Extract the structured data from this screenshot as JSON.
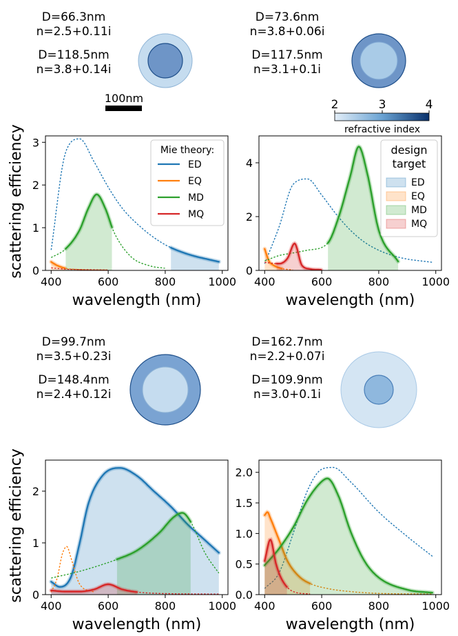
{
  "figure": {
    "scale_bar_label": "100nm",
    "colorbar": {
      "label": "refractive index",
      "ticks": [
        "2",
        "3",
        "4"
      ],
      "range": [
        2,
        4
      ]
    },
    "shell_labels": [
      {
        "outer_d": "D=66.3nm",
        "outer_n": "n=2.5+0.11i",
        "inner_d": "D=118.5nm",
        "inner_n": "n=3.8+0.14i"
      },
      {
        "outer_d": "D=73.6nm",
        "outer_n": "n=3.8+0.06i",
        "inner_d": "D=117.5nm",
        "inner_n": "n=3.1+0.1i"
      },
      {
        "outer_d": "D=99.7nm",
        "outer_n": "n=3.5+0.23i",
        "inner_d": "D=148.4nm",
        "inner_n": "n=2.4+0.12i"
      },
      {
        "outer_d": "D=162.7nm",
        "outer_n": "n=2.2+0.07i",
        "inner_d": "D=109.9nm",
        "inner_n": "n=3.0+0.1i"
      }
    ],
    "particles": [
      {
        "outer_color": "#c5dcef",
        "inner_color": "#6e95c7"
      },
      {
        "outer_color": "#6e95c7",
        "inner_color": "#a9cbe7"
      },
      {
        "outer_color": "#7aa3d2",
        "inner_color": "#c5dcef"
      },
      {
        "outer_color": "#d4e5f3",
        "inner_color": "#8fb8de"
      }
    ]
  },
  "chart_data": [
    {
      "type": "line",
      "xlabel": "wavelength (nm)",
      "ylabel": "scattering efficiency",
      "xlim": [
        380,
        1020
      ],
      "ylim": [
        0,
        3.15
      ],
      "xticks": [
        400,
        600,
        800,
        1000
      ],
      "yticks": [
        0,
        1,
        2,
        3
      ],
      "legend": {
        "title": "Mie theory:",
        "position": "top-right",
        "entries": [
          "ED",
          "EQ",
          "MD",
          "MQ"
        ]
      },
      "series": [
        {
          "name": "ED",
          "color": "#1f77b4",
          "x": [
            400,
            450,
            500,
            550,
            600,
            650,
            700,
            750,
            800,
            850,
            900,
            950,
            990
          ],
          "y": [
            0.48,
            2.75,
            3.08,
            2.55,
            1.95,
            1.45,
            1.1,
            0.82,
            0.6,
            0.45,
            0.34,
            0.26,
            0.2
          ],
          "highlight": [
            820,
            990
          ]
        },
        {
          "name": "EQ",
          "color": "#ff7f0e",
          "x": [
            400,
            420,
            450,
            500,
            550,
            600
          ],
          "y": [
            0.2,
            0.12,
            0.05,
            0.02,
            0.01,
            0.01
          ],
          "highlight": [
            400,
            450
          ]
        },
        {
          "name": "MD",
          "color": "#2ca02c",
          "x": [
            400,
            450,
            500,
            530,
            560,
            590,
            620,
            680,
            750,
            800
          ],
          "y": [
            0.3,
            0.5,
            0.95,
            1.45,
            1.78,
            1.45,
            0.9,
            0.32,
            0.1,
            0.05
          ],
          "highlight": [
            450,
            615
          ]
        },
        {
          "name": "MQ",
          "color": "#d62728",
          "x": [
            400,
            450,
            500,
            600
          ],
          "y": [
            0.06,
            0.03,
            0.02,
            0.01
          ],
          "highlight": null
        }
      ]
    },
    {
      "type": "line",
      "xlabel": "wavelength (nm)",
      "ylabel": "",
      "xlim": [
        380,
        1020
      ],
      "ylim": [
        0,
        5.0
      ],
      "xticks": [
        400,
        600,
        800,
        1000
      ],
      "yticks": [
        0,
        2,
        4
      ],
      "legend": {
        "title": "design target",
        "position": "top-right",
        "entries": [
          "ED",
          "EQ",
          "MD",
          "MQ"
        ]
      },
      "series": [
        {
          "name": "ED",
          "color": "#1f77b4",
          "x": [
            400,
            450,
            500,
            550,
            600,
            650,
            700,
            750,
            800,
            850,
            900,
            950,
            990
          ],
          "y": [
            0.25,
            1.6,
            3.2,
            3.4,
            2.8,
            2.1,
            1.5,
            1.05,
            0.75,
            0.55,
            0.42,
            0.35,
            0.3
          ],
          "highlight": null
        },
        {
          "name": "EQ",
          "color": "#ff7f0e",
          "x": [
            400,
            415,
            430,
            450,
            470,
            500
          ],
          "y": [
            0.8,
            0.35,
            0.2,
            0.1,
            0.05,
            0.02
          ],
          "highlight": [
            400,
            460
          ]
        },
        {
          "name": "MD",
          "color": "#2ca02c",
          "x": [
            400,
            450,
            500,
            550,
            620,
            660,
            700,
            730,
            760,
            800,
            870
          ],
          "y": [
            0.35,
            0.55,
            0.65,
            0.75,
            1.0,
            2.0,
            3.5,
            4.6,
            3.6,
            1.5,
            0.3
          ],
          "highlight": [
            620,
            870
          ]
        },
        {
          "name": "MQ",
          "color": "#d62728",
          "x": [
            400,
            450,
            480,
            505,
            530,
            560,
            600
          ],
          "y": [
            0.3,
            0.25,
            0.45,
            1.0,
            0.2,
            0.05,
            0.02
          ],
          "highlight": [
            440,
            660
          ]
        }
      ]
    },
    {
      "type": "line",
      "xlabel": "wavelength (nm)",
      "ylabel": "scattering efficiency",
      "xlim": [
        380,
        1020
      ],
      "ylim": [
        0,
        2.6
      ],
      "xticks": [
        400,
        600,
        800,
        1000
      ],
      "yticks": [
        0,
        1,
        2
      ],
      "legend": null,
      "series": [
        {
          "name": "ED",
          "color": "#1f77b4",
          "x": [
            400,
            430,
            470,
            500,
            530,
            580,
            640,
            700,
            760,
            820,
            880,
            940,
            990
          ],
          "y": [
            0.25,
            0.15,
            0.35,
            1.0,
            1.75,
            2.3,
            2.45,
            2.3,
            2.0,
            1.7,
            1.35,
            1.05,
            0.8
          ],
          "highlight": [
            400,
            990
          ]
        },
        {
          "name": "EQ",
          "color": "#ff7f0e",
          "x": [
            400,
            420,
            440,
            455,
            470,
            500,
            550
          ],
          "y": [
            0.05,
            0.3,
            0.8,
            0.93,
            0.7,
            0.2,
            0.05
          ],
          "highlight": null
        },
        {
          "name": "MD",
          "color": "#2ca02c",
          "x": [
            400,
            500,
            600,
            630,
            700,
            780,
            830,
            860,
            890,
            940,
            990
          ],
          "y": [
            0.32,
            0.45,
            0.62,
            0.68,
            0.85,
            1.2,
            1.5,
            1.58,
            1.4,
            0.8,
            0.4
          ],
          "highlight": [
            630,
            890
          ]
        },
        {
          "name": "MQ",
          "color": "#d62728",
          "x": [
            400,
            450,
            500,
            550,
            600,
            650,
            700,
            800,
            990
          ],
          "y": [
            0.08,
            0.06,
            0.06,
            0.1,
            0.2,
            0.1,
            0.05,
            0.02,
            0.01
          ],
          "highlight": [
            400,
            700
          ]
        }
      ]
    },
    {
      "type": "line",
      "xlabel": "wavelength (nm)",
      "ylabel": "",
      "xlim": [
        380,
        1020
      ],
      "ylim": [
        0,
        2.2
      ],
      "xticks": [
        400,
        600,
        800,
        1000
      ],
      "yticks": [
        0.0,
        0.5,
        1.0,
        1.5,
        2.0
      ],
      "legend": null,
      "series": [
        {
          "name": "ED",
          "color": "#1f77b4",
          "x": [
            400,
            450,
            500,
            550,
            600,
            640,
            700,
            800,
            900,
            990
          ],
          "y": [
            0.1,
            0.35,
            1.0,
            1.7,
            2.05,
            2.08,
            1.85,
            1.35,
            0.95,
            0.62
          ],
          "highlight": null
        },
        {
          "name": "EQ",
          "color": "#ff7f0e",
          "x": [
            400,
            410,
            420,
            450,
            480,
            520,
            560,
            620,
            700,
            800,
            990
          ],
          "y": [
            1.3,
            1.35,
            1.25,
            0.9,
            0.55,
            0.3,
            0.18,
            0.1,
            0.05,
            0.02,
            0.01
          ],
          "highlight": [
            400,
            560
          ]
        },
        {
          "name": "MD",
          "color": "#2ca02c",
          "x": [
            400,
            450,
            500,
            550,
            600,
            620,
            660,
            700,
            750,
            800,
            900,
            990
          ],
          "y": [
            0.48,
            0.75,
            1.1,
            1.55,
            1.85,
            1.9,
            1.6,
            1.05,
            0.55,
            0.28,
            0.08,
            0.03
          ],
          "highlight": [
            400,
            990
          ]
        },
        {
          "name": "MQ",
          "color": "#d62728",
          "x": [
            400,
            420,
            440,
            460,
            500,
            560
          ],
          "y": [
            0.55,
            0.9,
            0.5,
            0.25,
            0.05,
            0.01
          ],
          "highlight": [
            400,
            480
          ]
        }
      ]
    }
  ]
}
